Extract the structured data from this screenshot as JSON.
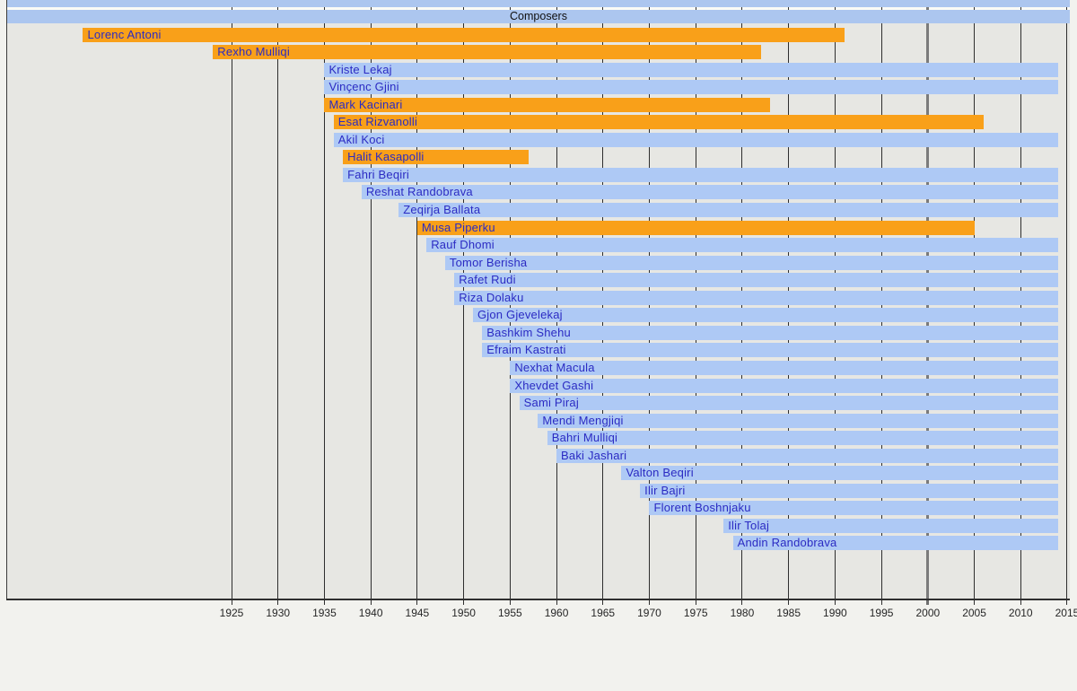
{
  "chart_data": {
    "type": "timeline",
    "title": "Composers",
    "x_axis": {
      "min": 1901,
      "max": 2015,
      "unit": "year",
      "tick_interval": 5,
      "tick_years": [
        1925,
        1930,
        1935,
        1940,
        1945,
        1950,
        1955,
        1960,
        1965,
        1970,
        1975,
        1980,
        1985,
        1990,
        1995,
        2000,
        2005,
        2010,
        2015
      ],
      "emphasized_year": 2000,
      "grid": "on"
    },
    "ongoing_until": 2014,
    "series": [
      {
        "name": "Lorenc Antoni",
        "from": 1909,
        "till": 1991,
        "color": "orange"
      },
      {
        "name": "Rexho Mulliqi",
        "from": 1923,
        "till": 1982,
        "color": "orange"
      },
      {
        "name": "Kriste Lekaj",
        "from": 1935,
        "till": null,
        "color": "blue"
      },
      {
        "name": "Vinçenc Gjini",
        "from": 1935,
        "till": null,
        "color": "blue"
      },
      {
        "name": "Mark Kacinari",
        "from": 1935,
        "till": 1983,
        "color": "orange"
      },
      {
        "name": "Esat Rizvanolli",
        "from": 1936,
        "till": 2006,
        "color": "orange"
      },
      {
        "name": "Akil Koci",
        "from": 1936,
        "till": null,
        "color": "blue"
      },
      {
        "name": "Halit Kasapolli",
        "from": 1937,
        "till": 1957,
        "color": "orange"
      },
      {
        "name": "Fahri Beqiri",
        "from": 1937,
        "till": null,
        "color": "blue"
      },
      {
        "name": "Reshat Randobrava",
        "from": 1939,
        "till": null,
        "color": "blue"
      },
      {
        "name": "Zeqirja Ballata",
        "from": 1943,
        "till": null,
        "color": "blue"
      },
      {
        "name": "Musa Piperku",
        "from": 1945,
        "till": 2005,
        "color": "orange"
      },
      {
        "name": "Rauf Dhomi",
        "from": 1946,
        "till": null,
        "color": "blue"
      },
      {
        "name": "Tomor Berisha",
        "from": 1948,
        "till": null,
        "color": "blue"
      },
      {
        "name": "Rafet Rudi",
        "from": 1949,
        "till": null,
        "color": "blue"
      },
      {
        "name": "Riza Dolaku",
        "from": 1949,
        "till": null,
        "color": "blue"
      },
      {
        "name": "Gjon Gjevelekaj",
        "from": 1951,
        "till": null,
        "color": "blue"
      },
      {
        "name": "Bashkim Shehu",
        "from": 1952,
        "till": null,
        "color": "blue"
      },
      {
        "name": "Efraim Kastrati",
        "from": 1952,
        "till": null,
        "color": "blue"
      },
      {
        "name": "Nexhat Macula",
        "from": 1955,
        "till": null,
        "color": "blue"
      },
      {
        "name": "Xhevdet Gashi",
        "from": 1955,
        "till": null,
        "color": "blue"
      },
      {
        "name": "Sami Piraj",
        "from": 1956,
        "till": null,
        "color": "blue"
      },
      {
        "name": "Mendi Mengjiqi",
        "from": 1958,
        "till": null,
        "color": "blue"
      },
      {
        "name": "Bahri Mulliqi",
        "from": 1959,
        "till": null,
        "color": "blue"
      },
      {
        "name": "Baki Jashari",
        "from": 1960,
        "till": null,
        "color": "blue"
      },
      {
        "name": "Valton Beqiri",
        "from": 1967,
        "till": null,
        "color": "blue"
      },
      {
        "name": "Ilir Bajri",
        "from": 1969,
        "till": null,
        "color": "blue"
      },
      {
        "name": "Florent Boshnjaku",
        "from": 1970,
        "till": null,
        "color": "blue"
      },
      {
        "name": "Ilir Tolaj",
        "from": 1978,
        "till": null,
        "color": "blue"
      },
      {
        "name": "Andin Randobrava",
        "from": 1979,
        "till": null,
        "color": "blue"
      }
    ],
    "colors": {
      "orange_bar": "#F9A019",
      "blue_bar": "#AEC9F5",
      "header_bar": "#ACC6EF",
      "label_text": "#2B2BC3",
      "header_text": "#101010",
      "axis_text": "#262626",
      "plot_background": "#E7E7E3",
      "page_background": "#F2F2EE",
      "gridline": "#2E2E2E",
      "emphasized_gridline": "#7B7B7B"
    },
    "legend_position": "none"
  }
}
